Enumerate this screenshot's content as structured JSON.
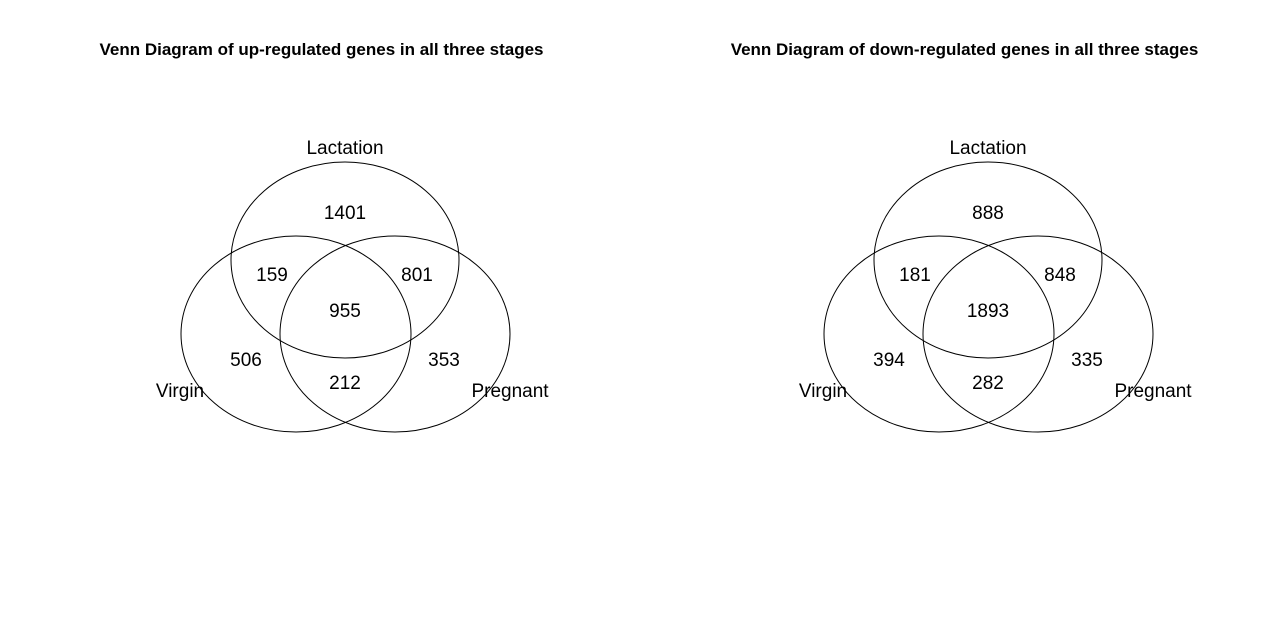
{
  "diagrams": [
    {
      "title": "Venn Diagram of up-regulated genes in all three stages",
      "sets": {
        "top": "Lactation",
        "left": "Virgin",
        "right": "Pregnant"
      },
      "counts": {
        "lactation_only": "1401",
        "virgin_lactation": "159",
        "lactation_pregnant": "801",
        "all_three": "955",
        "virgin_only": "506",
        "pregnant_only": "353",
        "virgin_pregnant": "212"
      }
    },
    {
      "title": "Venn Diagram of down-regulated genes in all three stages",
      "sets": {
        "top": "Lactation",
        "left": "Virgin",
        "right": "Pregnant"
      },
      "counts": {
        "lactation_only": "888",
        "virgin_lactation": "181",
        "lactation_pregnant": "848",
        "all_three": "1893",
        "virgin_only": "394",
        "pregnant_only": "335",
        "virgin_pregnant": "282"
      }
    }
  ]
}
